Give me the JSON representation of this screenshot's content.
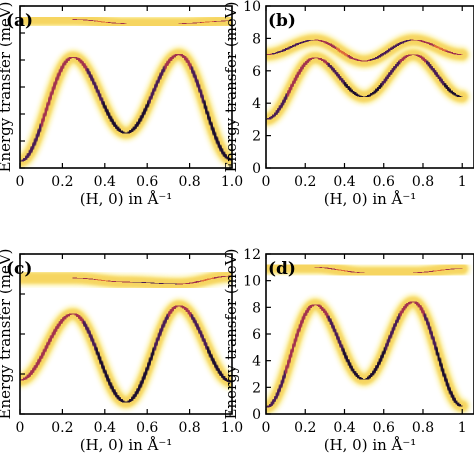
{
  "chart_data": [
    {
      "type": "heatmap",
      "panel_label": "(a)",
      "xlabel": "(H, 0) in Å⁻¹",
      "ylabel": "Energy transfer (meV)",
      "xlim": [
        0,
        1.0
      ],
      "ylim": [
        0,
        12
      ],
      "x_ticks": [
        "0",
        "0.2",
        "0.4",
        "0.6",
        "0.8",
        "1.0"
      ],
      "y_ticks": [],
      "bands": [
        {
          "name": "lower",
          "x": [
            0,
            0.25,
            0.5,
            0.75,
            1.0
          ],
          "y": [
            0.5,
            8.2,
            2.6,
            8.4,
            0.6
          ]
        },
        {
          "name": "upper",
          "x": [
            0,
            0.25,
            0.5,
            0.75,
            1.0
          ],
          "y": [
            11.0,
            11.0,
            10.7,
            10.7,
            10.9
          ]
        }
      ]
    },
    {
      "type": "heatmap",
      "panel_label": "(b)",
      "xlabel": "(H, 0) in Å⁻¹",
      "ylabel": "Energy transfer (meV)",
      "xlim": [
        0,
        1.0
      ],
      "ylim": [
        0,
        10
      ],
      "x_ticks": [
        "0",
        "0.2",
        "0.4",
        "0.6",
        "0.8",
        "1"
      ],
      "y_ticks": [
        "0",
        "2",
        "4",
        "6",
        "8",
        "10"
      ],
      "bands": [
        {
          "name": "lower",
          "x": [
            0,
            0.25,
            0.5,
            0.75,
            1.0
          ],
          "y": [
            3.0,
            6.8,
            4.4,
            7.0,
            4.4
          ]
        },
        {
          "name": "upper",
          "x": [
            0,
            0.25,
            0.5,
            0.75,
            1.0
          ],
          "y": [
            7.0,
            7.9,
            6.6,
            7.9,
            7.0
          ]
        }
      ]
    },
    {
      "type": "heatmap",
      "panel_label": "(c)",
      "xlabel": "(H, 0) in Å⁻¹",
      "ylabel": "Energy transfer (meV)",
      "xlim": [
        0,
        1.0
      ],
      "ylim": [
        0,
        8
      ],
      "x_ticks": [
        "0",
        "0.2",
        "0.4",
        "0.6",
        "0.8",
        "1.0"
      ],
      "y_ticks": [],
      "bands": [
        {
          "name": "lower",
          "x": [
            0,
            0.25,
            0.5,
            0.75,
            1.0
          ],
          "y": [
            1.7,
            5.0,
            0.6,
            5.4,
            1.6
          ]
        },
        {
          "name": "upper",
          "x": [
            0,
            0.25,
            0.5,
            0.75,
            1.0
          ],
          "y": [
            6.8,
            6.8,
            6.6,
            6.5,
            6.9
          ]
        }
      ]
    },
    {
      "type": "heatmap",
      "panel_label": "(d)",
      "xlabel": "(H, 0) in Å⁻¹",
      "ylabel": "Energy transfer (meV)",
      "xlim": [
        0,
        1.0
      ],
      "ylim": [
        0,
        12
      ],
      "x_ticks": [
        "0",
        "0.2",
        "0.4",
        "0.6",
        "0.8",
        "1"
      ],
      "y_ticks": [
        "0",
        "2",
        "4",
        "6",
        "8",
        "10",
        "12"
      ],
      "bands": [
        {
          "name": "lower",
          "x": [
            0,
            0.25,
            0.5,
            0.75,
            1.0
          ],
          "y": [
            0.5,
            8.2,
            2.6,
            8.4,
            0.6
          ]
        },
        {
          "name": "upper",
          "x": [
            0,
            0.25,
            0.5,
            0.75,
            1.0
          ],
          "y": [
            11.0,
            11.0,
            10.6,
            10.6,
            10.9
          ]
        }
      ]
    }
  ]
}
